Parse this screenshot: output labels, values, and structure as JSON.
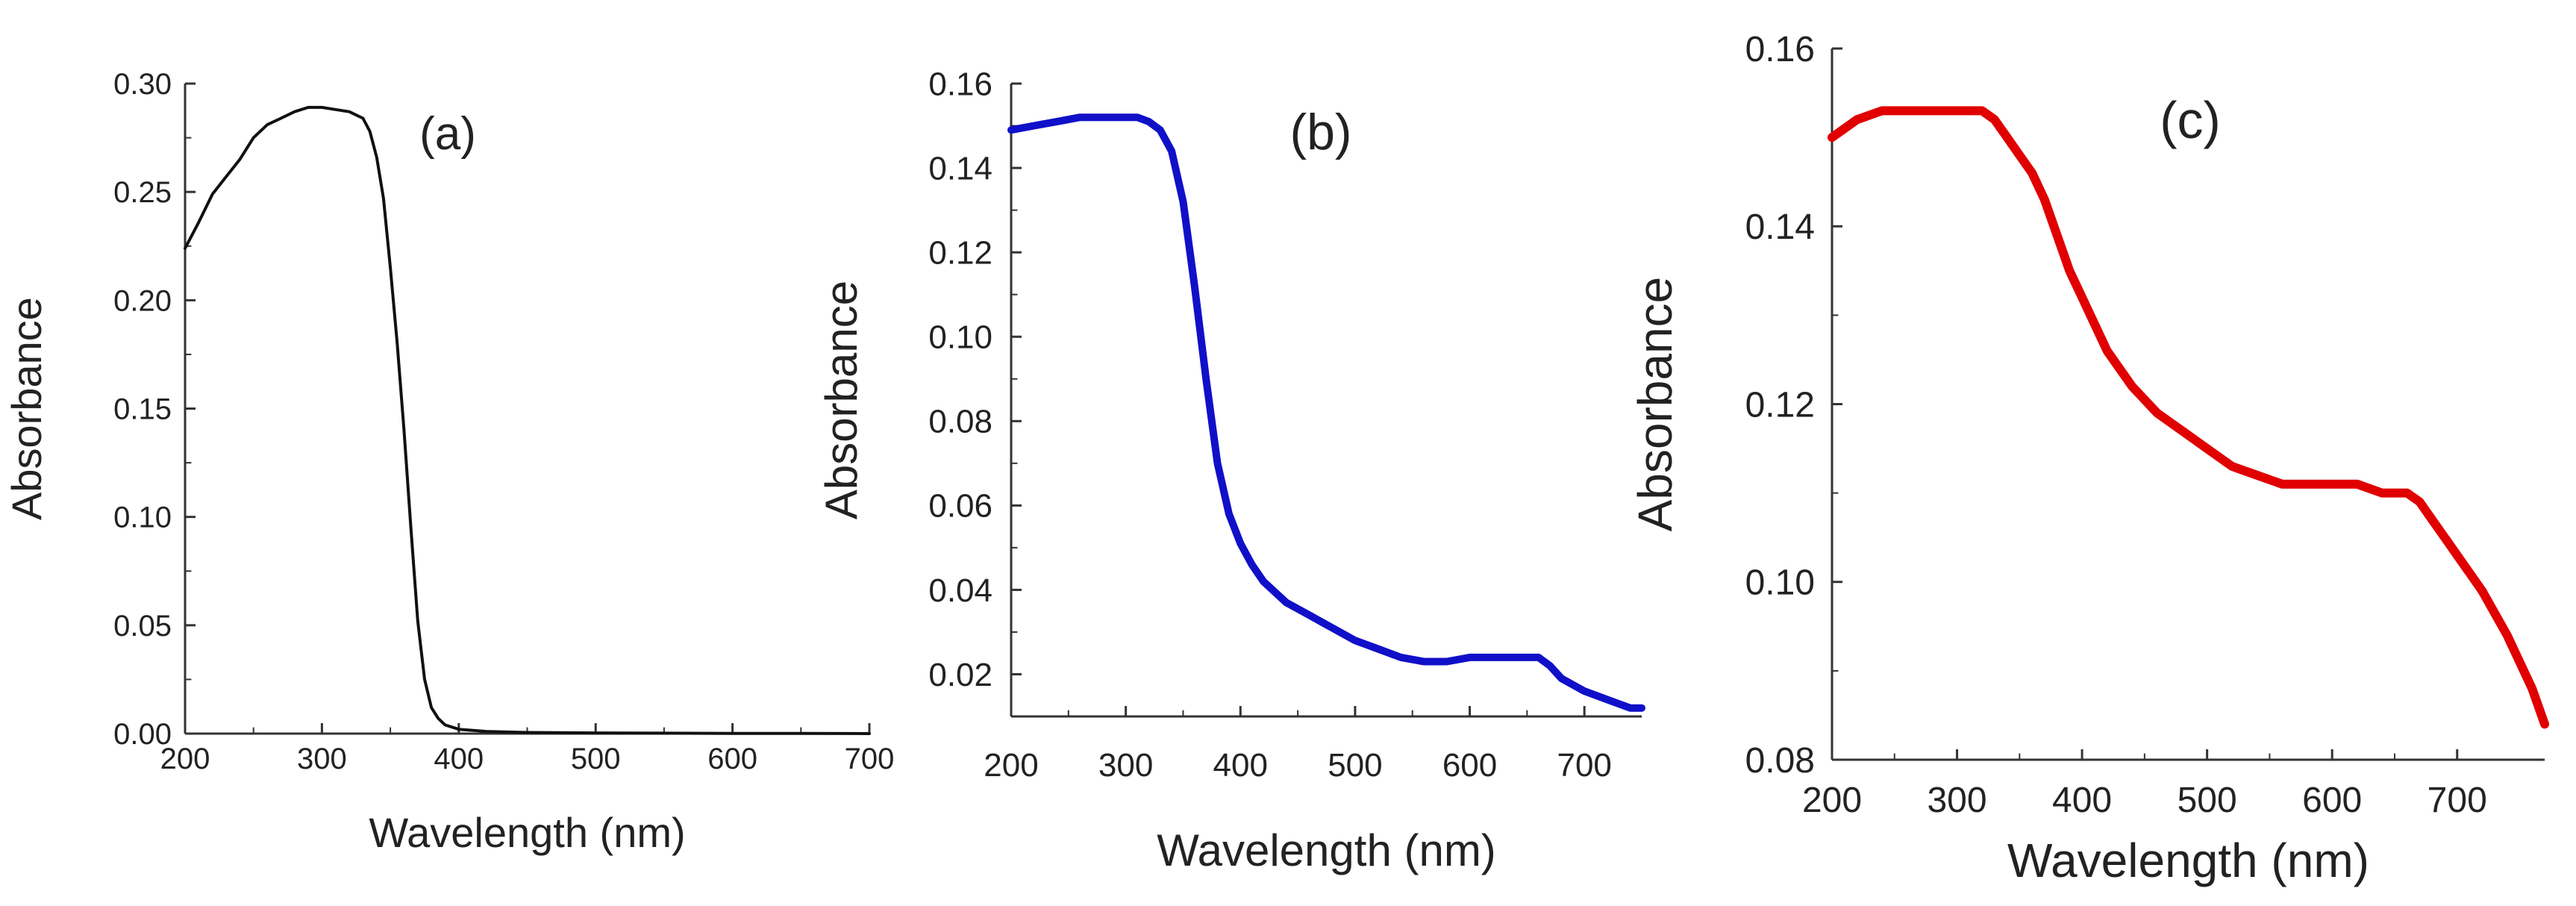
{
  "chart_data": [
    {
      "type": "line",
      "panel_label": "(a)",
      "xlabel": "Wavelength (nm)",
      "ylabel": "Absorbance",
      "xlim": [
        200,
        700
      ],
      "ylim": [
        0.0,
        0.3
      ],
      "xticks": [
        "200",
        "300",
        "400",
        "500",
        "600",
        "700"
      ],
      "yticks": [
        "0.00",
        "0.05",
        "0.10",
        "0.15",
        "0.20",
        "0.25",
        "0.30"
      ],
      "color": "#111111",
      "series": [
        {
          "name": "(a)",
          "x": [
            200,
            210,
            220,
            230,
            240,
            250,
            260,
            270,
            280,
            290,
            300,
            310,
            320,
            330,
            335,
            340,
            345,
            350,
            355,
            360,
            365,
            370,
            375,
            380,
            385,
            390,
            400,
            420,
            450,
            500,
            550,
            600,
            650,
            700
          ],
          "y": [
            0.224,
            0.236,
            0.249,
            0.257,
            0.265,
            0.275,
            0.281,
            0.284,
            0.287,
            0.289,
            0.289,
            0.288,
            0.287,
            0.284,
            0.278,
            0.266,
            0.247,
            0.215,
            0.18,
            0.14,
            0.095,
            0.052,
            0.025,
            0.012,
            0.007,
            0.004,
            0.002,
            0.001,
            0.0005,
            0.0003,
            0.0002,
            0.0001,
            0.0001,
            0.0
          ]
        }
      ]
    },
    {
      "type": "line",
      "panel_label": "(b)",
      "xlabel": "Wavelength (nm)",
      "ylabel": "Absorbance",
      "xlim": [
        200,
        750
      ],
      "ylim": [
        0.01,
        0.16
      ],
      "xticks": [
        "200",
        "300",
        "400",
        "500",
        "600",
        "700"
      ],
      "yticks": [
        "0.02",
        "0.04",
        "0.06",
        "0.08",
        "0.10",
        "0.12",
        "0.14",
        "0.16"
      ],
      "color": "#1010c8",
      "series": [
        {
          "name": "(b)",
          "x": [
            200,
            220,
            240,
            260,
            280,
            300,
            310,
            320,
            330,
            340,
            350,
            360,
            370,
            380,
            390,
            400,
            410,
            420,
            440,
            460,
            480,
            500,
            520,
            540,
            560,
            580,
            600,
            620,
            640,
            660,
            670,
            680,
            700,
            720,
            740,
            750
          ],
          "y": [
            0.149,
            0.15,
            0.151,
            0.152,
            0.152,
            0.152,
            0.152,
            0.151,
            0.149,
            0.144,
            0.132,
            0.112,
            0.09,
            0.07,
            0.058,
            0.051,
            0.046,
            0.042,
            0.037,
            0.034,
            0.031,
            0.028,
            0.026,
            0.024,
            0.023,
            0.023,
            0.024,
            0.024,
            0.024,
            0.024,
            0.022,
            0.019,
            0.016,
            0.014,
            0.012,
            0.012
          ]
        }
      ]
    },
    {
      "type": "line",
      "panel_label": "(c)",
      "xlabel": "Wavelength (nm)",
      "ylabel": "Absorbance",
      "xlim": [
        200,
        770
      ],
      "ylim": [
        0.08,
        0.16
      ],
      "xticks": [
        "200",
        "300",
        "400",
        "500",
        "600",
        "700"
      ],
      "yticks": [
        "0.08",
        "0.10",
        "0.12",
        "0.14",
        "0.16"
      ],
      "color": "#e00000",
      "series": [
        {
          "name": "(c)",
          "x": [
            200,
            210,
            220,
            240,
            260,
            280,
            300,
            320,
            330,
            340,
            350,
            360,
            370,
            380,
            390,
            400,
            420,
            440,
            460,
            480,
            500,
            520,
            540,
            560,
            580,
            600,
            620,
            640,
            660,
            670,
            680,
            690,
            700,
            720,
            740,
            760,
            770
          ],
          "y": [
            0.15,
            0.151,
            0.152,
            0.153,
            0.153,
            0.153,
            0.153,
            0.153,
            0.152,
            0.15,
            0.148,
            0.146,
            0.143,
            0.139,
            0.135,
            0.132,
            0.126,
            0.122,
            0.119,
            0.117,
            0.115,
            0.113,
            0.112,
            0.111,
            0.111,
            0.111,
            0.111,
            0.11,
            0.11,
            0.109,
            0.107,
            0.105,
            0.103,
            0.099,
            0.094,
            0.088,
            0.084
          ]
        }
      ]
    }
  ]
}
